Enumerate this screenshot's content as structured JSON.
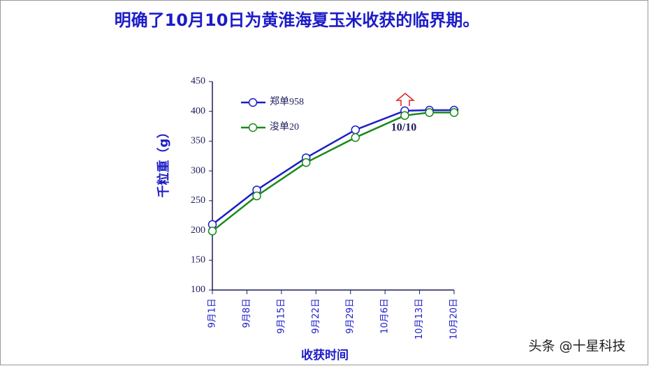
{
  "chart_data": {
    "type": "line",
    "title": "明确了10月10日为黄淮海夏玉米收获的临界期。",
    "y_label": "千粒重（g）",
    "x_label": "收获时间",
    "x": [
      0,
      9,
      19,
      29,
      39,
      44,
      49
    ],
    "xlim": [
      0,
      49
    ],
    "xticks": [
      {
        "value": 0,
        "label": "9月1日"
      },
      {
        "value": 7,
        "label": "9月8日"
      },
      {
        "value": 14,
        "label": "9月15日"
      },
      {
        "value": 21,
        "label": "9月22日"
      },
      {
        "value": 28,
        "label": "9月29日"
      },
      {
        "value": 35,
        "label": "10月6日"
      },
      {
        "value": 42,
        "label": "10月13日"
      },
      {
        "value": 49,
        "label": "10月20日"
      }
    ],
    "ylim": [
      100,
      450
    ],
    "yticks": [
      100,
      150,
      200,
      250,
      300,
      350,
      400,
      450
    ],
    "series": [
      {
        "name": "郑单958",
        "color": "#1c1cc8",
        "values": [
          210,
          268,
          322,
          369,
          401,
          402,
          402
        ]
      },
      {
        "name": "浚单20",
        "color": "#1a8a1a",
        "values": [
          199,
          258,
          314,
          356,
          393,
          398,
          398
        ]
      }
    ],
    "annotation": "10/10",
    "legend": "upper left",
    "watermark": "头条 @十星科技"
  }
}
